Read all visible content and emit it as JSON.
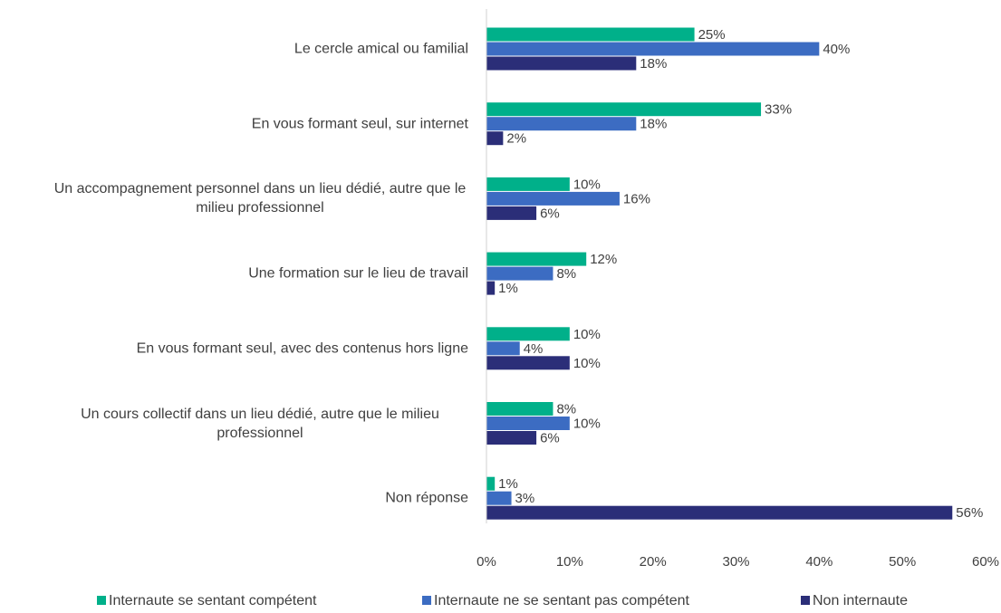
{
  "chart_data": {
    "type": "hbar",
    "categories": [
      "Le cercle amical ou familial",
      "En vous formant seul, sur internet",
      "Un accompagnement personnel dans un lieu dédié, autre que le milieu professionnel",
      "Une formation sur le lieu de travail",
      "En vous formant seul, avec des contenus hors ligne",
      "Un cours collectif dans un lieu dédié, autre que le milieu professionnel",
      "Non réponse"
    ],
    "series": [
      {
        "name": "Internaute se sentant compétent",
        "color": "#00b08a",
        "values": [
          25,
          33,
          10,
          12,
          10,
          8,
          1
        ],
        "value_labels": [
          "25%",
          "33%",
          "10%",
          "12%",
          "10%",
          "8%",
          "1%"
        ]
      },
      {
        "name": "Internaute ne se sentant pas compétent",
        "color": "#3c6cc2",
        "values": [
          40,
          18,
          16,
          8,
          4,
          10,
          3
        ],
        "value_labels": [
          "40%",
          "18%",
          "16%",
          "8%",
          "4%",
          "10%",
          "3%"
        ]
      },
      {
        "name": "Non internaute",
        "color": "#2b2e78",
        "values": [
          18,
          2,
          6,
          1,
          10,
          6,
          56
        ],
        "value_labels": [
          "18%",
          "2%",
          "6%",
          "1%",
          "10%",
          "6%",
          "56%"
        ]
      }
    ],
    "xlim": [
      0,
      60
    ],
    "xticks": [
      {
        "value": 0,
        "label": "0%"
      },
      {
        "value": 10,
        "label": "10%"
      },
      {
        "value": 20,
        "label": "20%"
      },
      {
        "value": 30,
        "label": "30%"
      },
      {
        "value": 40,
        "label": "40%"
      },
      {
        "value": 50,
        "label": "50%"
      },
      {
        "value": 60,
        "label": "60%"
      }
    ],
    "legend": "bottom"
  }
}
